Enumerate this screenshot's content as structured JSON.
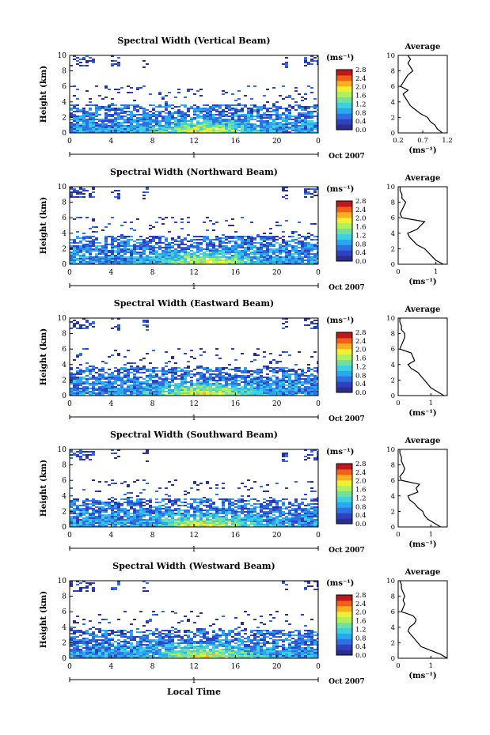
{
  "figure": {
    "x_axis_label": "Local Time",
    "date_label": "Oct 2007",
    "day_label": "1",
    "colorbar_unit": "(ms⁻¹)",
    "colorbar_ticks": [
      "0.0",
      "0.4",
      "0.8",
      "1.2",
      "1.6",
      "2.0",
      "2.4",
      "2.8"
    ],
    "colorscale": [
      "#2b2f8a",
      "#3040c0",
      "#2f6fe0",
      "#27a8f0",
      "#3fd0e0",
      "#6fe0a0",
      "#b0f060",
      "#f0f030",
      "#f8b020",
      "#f06018",
      "#c01818"
    ]
  },
  "chart_data": [
    {
      "type": "heatmap",
      "title": "Spectral Width (Vertical Beam)",
      "ylabel": "Height (km)",
      "xlim": [
        0,
        24
      ],
      "ylim": [
        0,
        10
      ],
      "x_ticks": [
        "0",
        "4",
        "8",
        "12",
        "16",
        "20",
        "0"
      ],
      "y_ticks": [
        "0",
        "2",
        "4",
        "6",
        "8",
        "10"
      ],
      "clim": [
        0.0,
        2.8
      ],
      "profile": {
        "title": "Average",
        "xlabel": "(ms⁻¹)",
        "x_ticks": [
          "0.2",
          "0.7",
          "1.2"
        ],
        "xlim": [
          0.2,
          1.2
        ],
        "y_ticks": [
          "0",
          "2",
          "4",
          "6",
          "8",
          "10"
        ],
        "heights": [
          0,
          0.5,
          1,
          1.5,
          2,
          2.5,
          3,
          3.5,
          4,
          4.5,
          5,
          5.5,
          6,
          6.5,
          7,
          7.5,
          8,
          8.5,
          9,
          9.5,
          10
        ],
        "values": [
          1.1,
          1.0,
          0.95,
          0.85,
          0.8,
          0.65,
          0.55,
          0.45,
          0.4,
          0.35,
          0.3,
          0.4,
          0.25,
          0.3,
          0.35,
          0.4,
          0.5,
          0.45,
          0.4,
          0.45,
          0.4
        ]
      }
    },
    {
      "type": "heatmap",
      "title": "Spectral Width (Northward Beam)",
      "ylabel": "Height (km)",
      "xlim": [
        0,
        24
      ],
      "ylim": [
        0,
        10
      ],
      "x_ticks": [
        "0",
        "4",
        "8",
        "12",
        "16",
        "20",
        "0"
      ],
      "y_ticks": [
        "0",
        "2",
        "4",
        "6",
        "8",
        "10"
      ],
      "clim": [
        0.0,
        2.8
      ],
      "profile": {
        "title": "Average",
        "xlabel": "(ms⁻¹)",
        "x_ticks": [
          "0",
          "1"
        ],
        "xlim": [
          0,
          1.3
        ],
        "y_ticks": [
          "0",
          "2",
          "4",
          "6",
          "8",
          "10"
        ],
        "heights": [
          0,
          0.5,
          1,
          1.5,
          2,
          2.5,
          3,
          3.5,
          4,
          4.5,
          5,
          5.5,
          6,
          6.5,
          7,
          7.5,
          8,
          8.5,
          9,
          9.5,
          10
        ],
        "values": [
          1.2,
          1.0,
          0.9,
          0.8,
          0.7,
          0.5,
          0.4,
          0.3,
          0.25,
          0.5,
          0.6,
          0.7,
          0.1,
          0.05,
          0.1,
          0.15,
          0.2,
          0.1,
          0.1,
          0.05,
          0.05
        ]
      }
    },
    {
      "type": "heatmap",
      "title": "Spectral Width (Eastward Beam)",
      "ylabel": "Height (km)",
      "xlim": [
        0,
        24
      ],
      "ylim": [
        0,
        10
      ],
      "x_ticks": [
        "0",
        "4",
        "8",
        "12",
        "16",
        "20",
        "0"
      ],
      "y_ticks": [
        "0",
        "2",
        "4",
        "6",
        "8",
        "10"
      ],
      "clim": [
        0.0,
        2.8
      ],
      "profile": {
        "title": "Average",
        "xlabel": "(ms⁻¹)",
        "x_ticks": [
          "0",
          "1"
        ],
        "xlim": [
          0,
          1.5
        ],
        "y_ticks": [
          "0",
          "2",
          "4",
          "6",
          "8",
          "10"
        ],
        "heights": [
          0,
          0.5,
          1,
          1.5,
          2,
          2.5,
          3,
          3.5,
          4,
          4.5,
          5,
          5.5,
          6,
          6.5,
          7,
          7.5,
          8,
          8.5,
          9,
          9.5,
          10
        ],
        "values": [
          1.4,
          1.2,
          1.0,
          0.9,
          0.8,
          0.7,
          0.6,
          0.4,
          0.3,
          0.5,
          0.45,
          0.4,
          0.05,
          0.1,
          0.15,
          0.2,
          0.2,
          0.1,
          0.1,
          0.05,
          0.05
        ]
      }
    },
    {
      "type": "heatmap",
      "title": "Spectral Width (Southward Beam)",
      "ylabel": "Height (km)",
      "xlim": [
        0,
        24
      ],
      "ylim": [
        0,
        10
      ],
      "x_ticks": [
        "0",
        "4",
        "8",
        "12",
        "16",
        "20",
        "0"
      ],
      "y_ticks": [
        "0",
        "2",
        "4",
        "6",
        "8",
        "10"
      ],
      "clim": [
        0.0,
        2.8
      ],
      "profile": {
        "title": "Average",
        "xlabel": "(ms⁻¹)",
        "x_ticks": [
          "0",
          "1"
        ],
        "xlim": [
          0,
          1.5
        ],
        "y_ticks": [
          "0",
          "2",
          "4",
          "6",
          "8",
          "10"
        ],
        "heights": [
          0,
          0.5,
          1,
          1.5,
          2,
          2.5,
          3,
          3.5,
          4,
          4.5,
          5,
          5.5,
          6,
          6.5,
          7,
          7.5,
          8,
          8.5,
          9,
          9.5,
          10
        ],
        "values": [
          1.3,
          1.1,
          0.9,
          0.8,
          0.75,
          0.6,
          0.5,
          0.35,
          0.3,
          0.6,
          0.55,
          0.65,
          0.1,
          0.05,
          0.15,
          0.2,
          0.15,
          0.1,
          0.1,
          0.05,
          0.05
        ]
      }
    },
    {
      "type": "heatmap",
      "title": "Spectral Width (Westward Beam)",
      "ylabel": "Height (km)",
      "xlim": [
        0,
        24
      ],
      "ylim": [
        0,
        10
      ],
      "x_ticks": [
        "0",
        "4",
        "8",
        "12",
        "16",
        "20",
        "0"
      ],
      "y_ticks": [
        "0",
        "2",
        "4",
        "6",
        "8",
        "10"
      ],
      "clim": [
        0.0,
        2.8
      ],
      "profile": {
        "title": "Average",
        "xlabel": "(ms⁻¹)",
        "x_ticks": [
          "0",
          "1"
        ],
        "xlim": [
          0,
          1.5
        ],
        "y_ticks": [
          "0",
          "2",
          "4",
          "6",
          "8",
          "10"
        ],
        "heights": [
          0,
          0.5,
          1,
          1.5,
          2,
          2.5,
          3,
          3.5,
          4,
          4.5,
          5,
          5.5,
          6,
          6.5,
          7,
          7.5,
          8,
          8.5,
          9,
          9.5,
          10
        ],
        "values": [
          1.5,
          1.3,
          1.0,
          0.7,
          0.6,
          0.5,
          0.4,
          0.3,
          0.35,
          0.5,
          0.55,
          0.45,
          0.1,
          0.15,
          0.2,
          0.15,
          0.2,
          0.15,
          0.1,
          0.1,
          0.05
        ]
      }
    }
  ]
}
